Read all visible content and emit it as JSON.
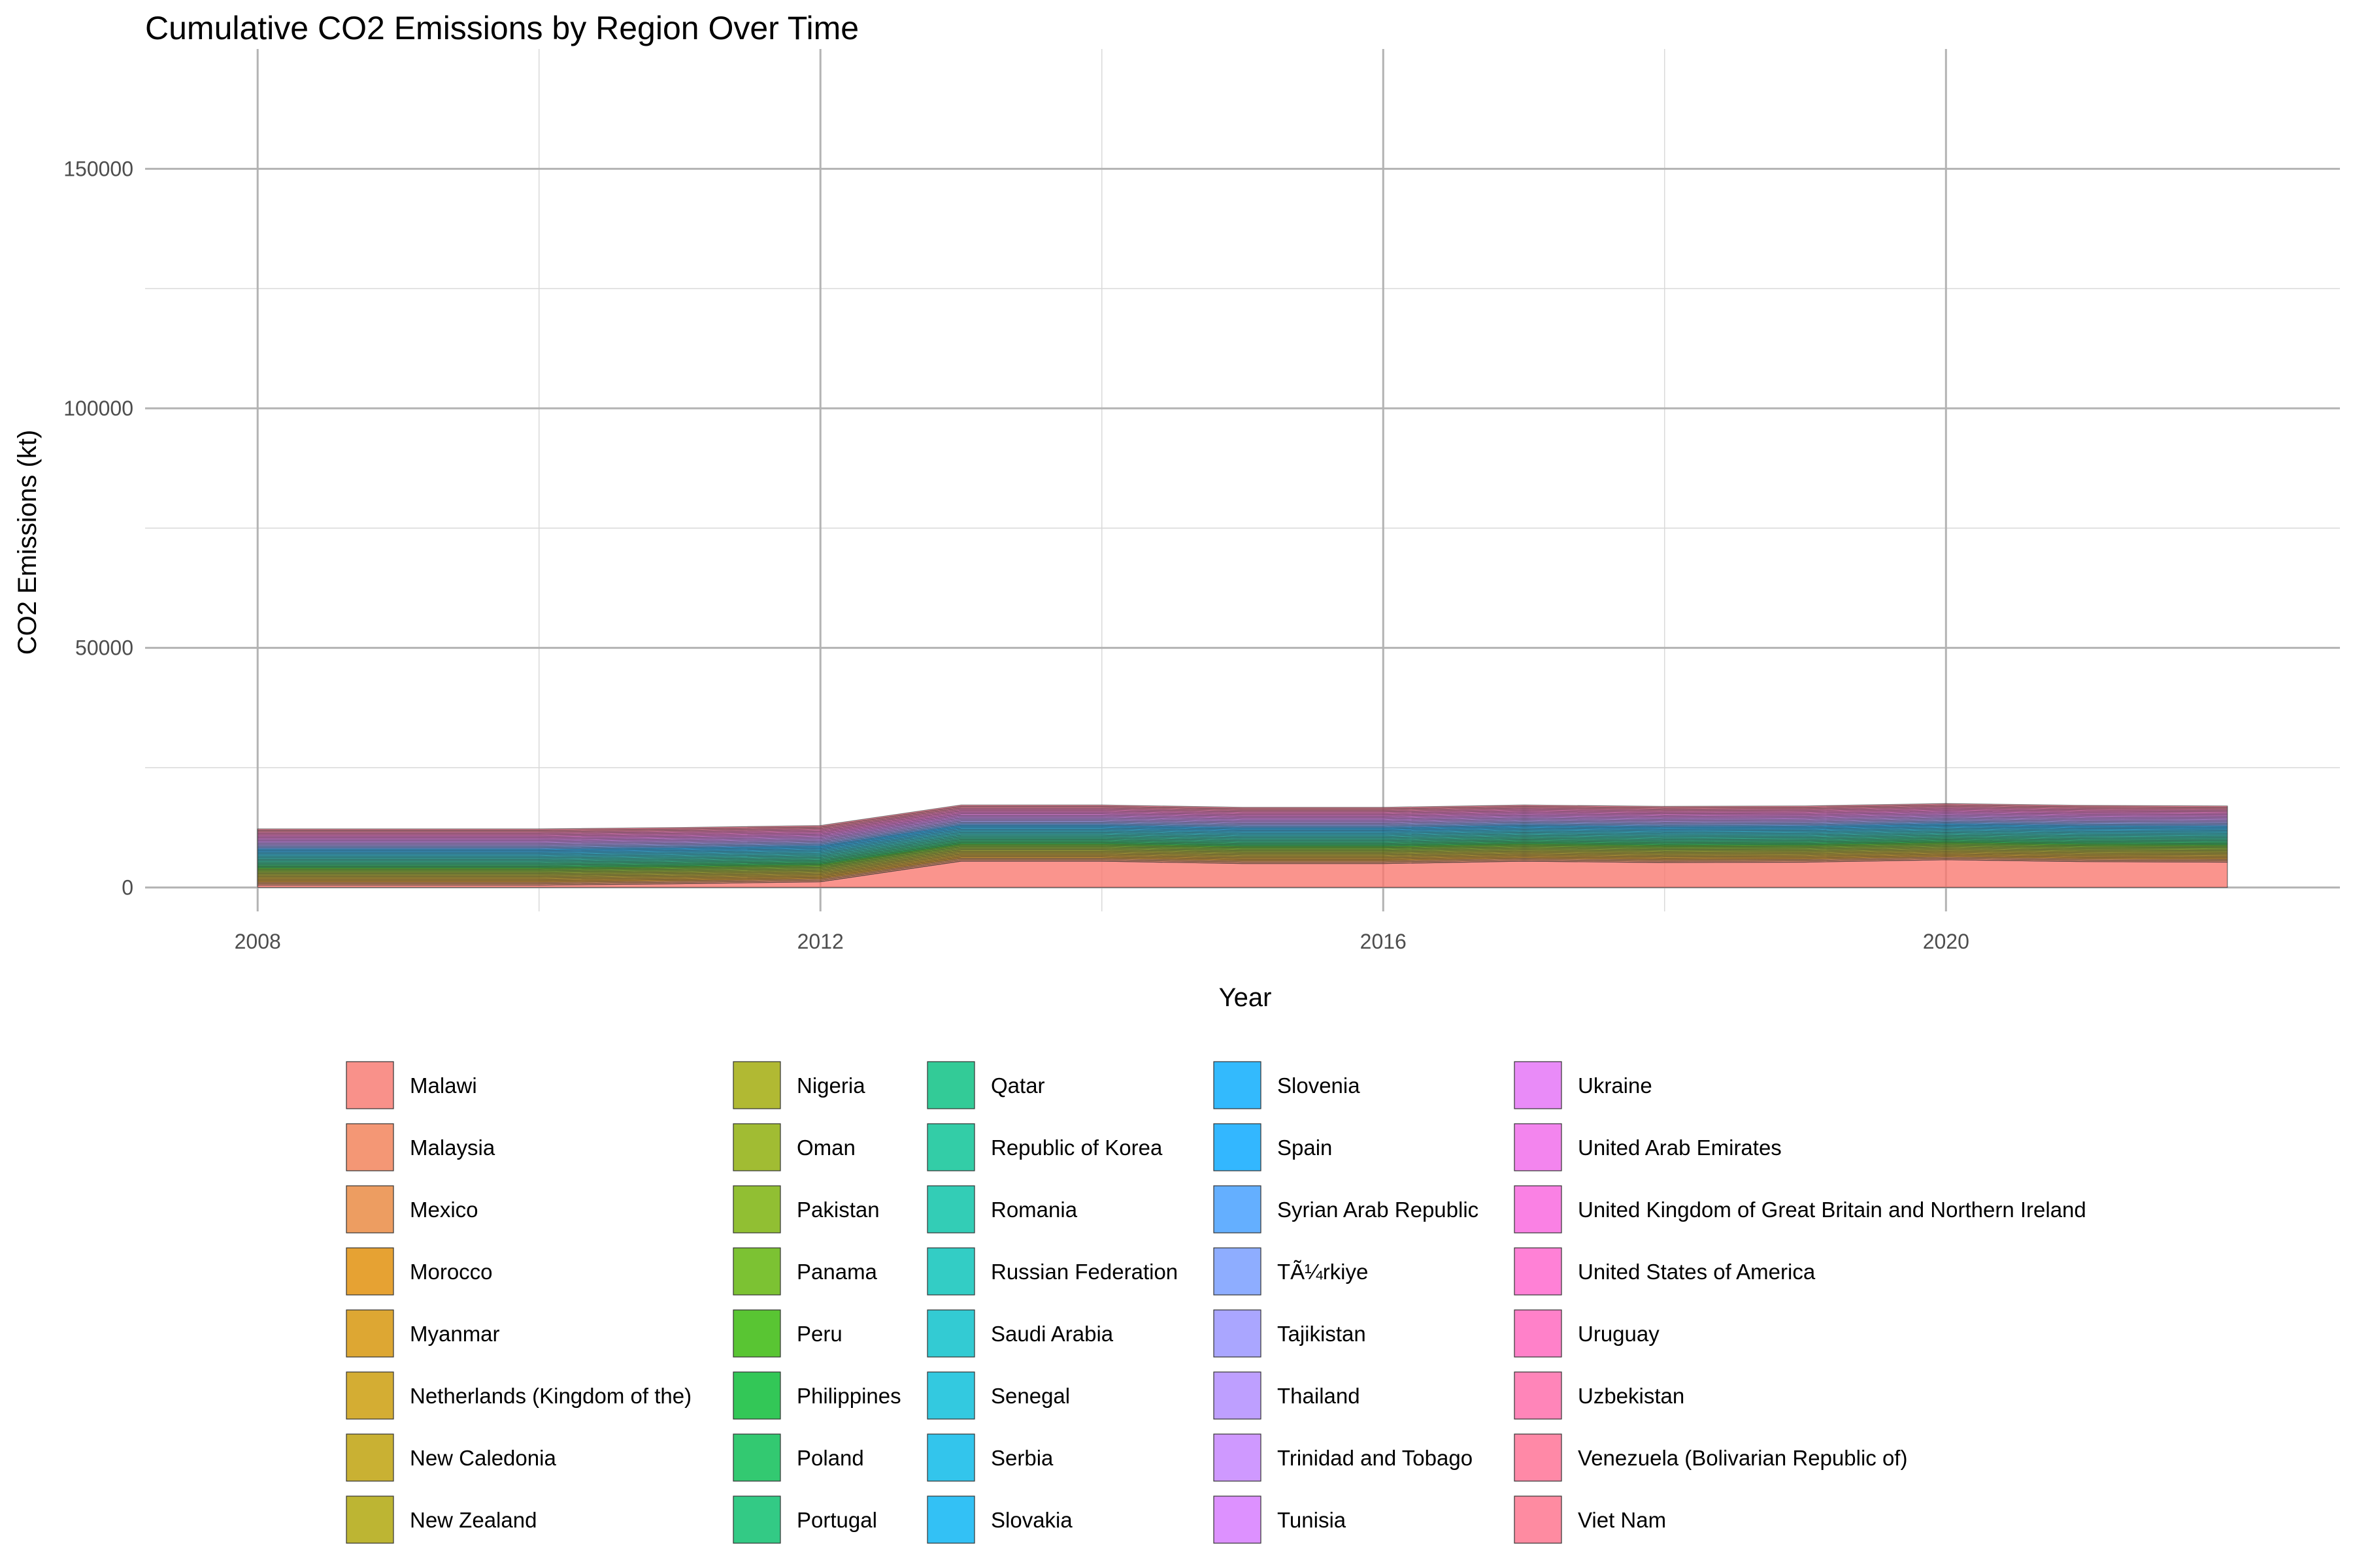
{
  "chart_data": {
    "type": "area",
    "stacked": true,
    "title": "Cumulative CO2 Emissions by Region Over Time",
    "xlabel": "Year",
    "ylabel": "CO2 Emissions (kt)",
    "xlim": [
      2007.2,
      2022.8
    ],
    "ylim": [
      -5000,
      175000
    ],
    "x_ticks": [
      2008,
      2012,
      2016,
      2020
    ],
    "y_ticks": [
      0,
      50000,
      100000,
      150000
    ],
    "y_tick_labels": [
      "0",
      "50000",
      "100000",
      "150000"
    ],
    "legend_position": "bottom",
    "legend_columns": 5,
    "grid": true,
    "x": [
      2008,
      2009,
      2010,
      2011,
      2012,
      2013,
      2014,
      2015,
      2016,
      2017,
      2018,
      2019,
      2020,
      2021,
      2022
    ],
    "series": [
      {
        "name": "Malawi",
        "color": "#F8766D",
        "values": [
          500,
          500,
          500,
          800,
          1200,
          5500,
          5500,
          5000,
          5000,
          5500,
          5200,
          5300,
          5800,
          5400,
          5300
        ]
      },
      {
        "name": "Malaysia",
        "color": "#F17D52",
        "values": [
          300,
          300,
          300,
          300,
          300,
          300,
          300,
          300,
          300,
          300,
          300,
          300,
          300,
          300,
          300
        ]
      },
      {
        "name": "Mexico",
        "color": "#E8853A",
        "values": [
          300,
          300,
          300,
          300,
          300,
          300,
          300,
          300,
          300,
          300,
          300,
          300,
          300,
          300,
          300
        ]
      },
      {
        "name": "Morocco",
        "color": "#E08B00",
        "values": [
          300,
          300,
          300,
          300,
          300,
          300,
          300,
          300,
          300,
          300,
          300,
          300,
          300,
          300,
          300
        ]
      },
      {
        "name": "Myanmar",
        "color": "#D59100",
        "values": [
          300,
          300,
          300,
          300,
          300,
          300,
          300,
          300,
          300,
          300,
          300,
          300,
          300,
          300,
          300
        ]
      },
      {
        "name": "Netherlands (Kingdom of the)",
        "color": "#C99800",
        "values": [
          300,
          300,
          300,
          300,
          300,
          300,
          300,
          300,
          300,
          300,
          300,
          300,
          300,
          300,
          300
        ]
      },
      {
        "name": "New Caledonia",
        "color": "#BB9D00",
        "values": [
          300,
          300,
          300,
          300,
          300,
          300,
          300,
          300,
          300,
          300,
          300,
          300,
          300,
          300,
          300
        ]
      },
      {
        "name": "New Zealand",
        "color": "#ADA200",
        "values": [
          300,
          300,
          300,
          300,
          300,
          300,
          300,
          300,
          300,
          300,
          300,
          300,
          300,
          300,
          300
        ]
      },
      {
        "name": "Nigeria",
        "color": "#9DA700",
        "values": [
          300,
          300,
          300,
          300,
          300,
          300,
          300,
          300,
          300,
          300,
          300,
          300,
          300,
          300,
          300
        ]
      },
      {
        "name": "Oman",
        "color": "#8AAB00",
        "values": [
          300,
          300,
          300,
          300,
          300,
          300,
          300,
          300,
          300,
          300,
          300,
          300,
          300,
          300,
          300
        ]
      },
      {
        "name": "Pakistan",
        "color": "#75AF00",
        "values": [
          300,
          300,
          300,
          300,
          300,
          300,
          300,
          300,
          300,
          300,
          300,
          300,
          300,
          300,
          300
        ]
      },
      {
        "name": "Panama",
        "color": "#5BB300",
        "values": [
          300,
          300,
          300,
          300,
          300,
          300,
          300,
          300,
          300,
          300,
          300,
          300,
          300,
          300,
          300
        ]
      },
      {
        "name": "Peru",
        "color": "#2FB600",
        "values": [
          300,
          300,
          300,
          300,
          300,
          300,
          300,
          300,
          300,
          300,
          300,
          300,
          300,
          300,
          300
        ]
      },
      {
        "name": "Philippines",
        "color": "#00B92D",
        "values": [
          300,
          300,
          300,
          300,
          300,
          300,
          300,
          300,
          300,
          300,
          300,
          300,
          300,
          300,
          300
        ]
      },
      {
        "name": "Poland",
        "color": "#00BB4E",
        "values": [
          300,
          300,
          300,
          300,
          300,
          300,
          300,
          300,
          300,
          300,
          300,
          300,
          300,
          300,
          300
        ]
      },
      {
        "name": "Portugal",
        "color": "#00BD67",
        "values": [
          300,
          300,
          300,
          300,
          300,
          300,
          300,
          300,
          300,
          300,
          300,
          300,
          300,
          300,
          300
        ]
      },
      {
        "name": "Qatar",
        "color": "#00BE7D",
        "values": [
          300,
          300,
          300,
          300,
          300,
          300,
          300,
          300,
          300,
          300,
          300,
          300,
          300,
          300,
          300
        ]
      },
      {
        "name": "Republic of Korea",
        "color": "#00C091",
        "values": [
          300,
          300,
          300,
          300,
          300,
          300,
          300,
          300,
          300,
          300,
          300,
          300,
          300,
          300,
          300
        ]
      },
      {
        "name": "Romania",
        "color": "#00C0A4",
        "values": [
          300,
          300,
          300,
          300,
          300,
          300,
          300,
          300,
          300,
          300,
          300,
          300,
          300,
          300,
          300
        ]
      },
      {
        "name": "Russian Federation",
        "color": "#00C0B6",
        "values": [
          300,
          300,
          300,
          300,
          300,
          300,
          300,
          300,
          300,
          300,
          300,
          300,
          300,
          300,
          300
        ]
      },
      {
        "name": "Saudi Arabia",
        "color": "#00BEC8",
        "values": [
          300,
          300,
          300,
          300,
          300,
          300,
          300,
          300,
          300,
          300,
          300,
          300,
          300,
          300,
          300
        ]
      },
      {
        "name": "Senegal",
        "color": "#00BBD8",
        "values": [
          300,
          300,
          300,
          300,
          300,
          300,
          300,
          300,
          300,
          300,
          300,
          300,
          300,
          300,
          300
        ]
      },
      {
        "name": "Serbia",
        "color": "#00B7E7",
        "values": [
          300,
          300,
          300,
          300,
          300,
          300,
          300,
          300,
          300,
          300,
          300,
          300,
          300,
          300,
          300
        ]
      },
      {
        "name": "Slovakia",
        "color": "#00B1F3",
        "values": [
          300,
          300,
          300,
          300,
          300,
          300,
          300,
          300,
          300,
          300,
          300,
          300,
          300,
          300,
          300
        ]
      },
      {
        "name": "Slovenia",
        "color": "#00A9FD",
        "values": [
          300,
          300,
          300,
          300,
          300,
          300,
          300,
          300,
          300,
          300,
          300,
          300,
          300,
          300,
          300
        ]
      },
      {
        "name": "Spain",
        "color": "#00A5FF",
        "values": [
          300,
          300,
          300,
          300,
          300,
          300,
          300,
          300,
          300,
          300,
          300,
          300,
          300,
          300,
          300
        ]
      },
      {
        "name": "Syrian Arab Republic",
        "color": "#3D9BFF",
        "values": [
          300,
          300,
          300,
          300,
          300,
          300,
          300,
          300,
          300,
          300,
          300,
          300,
          300,
          300,
          300
        ]
      },
      {
        "name": "TÃ¼rkiye",
        "color": "#7299FF",
        "values": [
          300,
          300,
          300,
          300,
          300,
          300,
          300,
          300,
          300,
          300,
          300,
          300,
          300,
          300,
          300
        ]
      },
      {
        "name": "Tajikistan",
        "color": "#9590FF",
        "values": [
          300,
          300,
          300,
          300,
          300,
          300,
          300,
          300,
          300,
          300,
          300,
          300,
          300,
          300,
          300
        ]
      },
      {
        "name": "Thailand",
        "color": "#AE87FF",
        "values": [
          300,
          300,
          300,
          300,
          300,
          300,
          300,
          300,
          300,
          300,
          300,
          300,
          300,
          300,
          300
        ]
      },
      {
        "name": "Trinidad and Tobago",
        "color": "#C37FFF",
        "values": [
          300,
          300,
          300,
          300,
          300,
          300,
          300,
          300,
          300,
          300,
          300,
          300,
          300,
          300,
          300
        ]
      },
      {
        "name": "Tunisia",
        "color": "#D576FF",
        "values": [
          300,
          300,
          300,
          300,
          300,
          300,
          300,
          300,
          300,
          300,
          300,
          300,
          300,
          300,
          300
        ]
      },
      {
        "name": "Ukraine",
        "color": "#E46EF6",
        "values": [
          300,
          300,
          300,
          300,
          300,
          300,
          300,
          300,
          300,
          300,
          300,
          300,
          300,
          300,
          300
        ]
      },
      {
        "name": "United Arab Emirates",
        "color": "#F066EA",
        "values": [
          300,
          300,
          300,
          300,
          300,
          300,
          300,
          300,
          300,
          300,
          300,
          300,
          300,
          300,
          300
        ]
      },
      {
        "name": "United Kingdom of Great Britain and Northern Ireland",
        "color": "#F962DD",
        "values": [
          300,
          300,
          300,
          300,
          300,
          300,
          300,
          300,
          300,
          300,
          300,
          300,
          300,
          300,
          300
        ]
      },
      {
        "name": "United States of America",
        "color": "#FF61CC",
        "values": [
          300,
          300,
          300,
          300,
          300,
          300,
          300,
          300,
          300,
          300,
          300,
          300,
          300,
          300,
          300
        ]
      },
      {
        "name": "Uruguay",
        "color": "#FF62BC",
        "values": [
          300,
          300,
          300,
          300,
          300,
          300,
          300,
          300,
          300,
          300,
          300,
          300,
          300,
          300,
          300
        ]
      },
      {
        "name": "Uzbekistan",
        "color": "#FF66A8",
        "values": [
          300,
          300,
          300,
          300,
          300,
          300,
          300,
          300,
          300,
          300,
          300,
          300,
          300,
          300,
          300
        ]
      },
      {
        "name": "Venezuela (Bolivarian Republic of)",
        "color": "#FF6C91",
        "values": [
          300,
          300,
          300,
          300,
          300,
          300,
          300,
          300,
          300,
          300,
          300,
          300,
          300,
          300,
          300
        ]
      },
      {
        "name": "Viet Nam",
        "color": "#FE6E8A",
        "values": [
          300,
          300,
          300,
          300,
          300,
          300,
          300,
          300,
          300,
          300,
          300,
          300,
          300,
          300,
          300
        ]
      }
    ]
  }
}
